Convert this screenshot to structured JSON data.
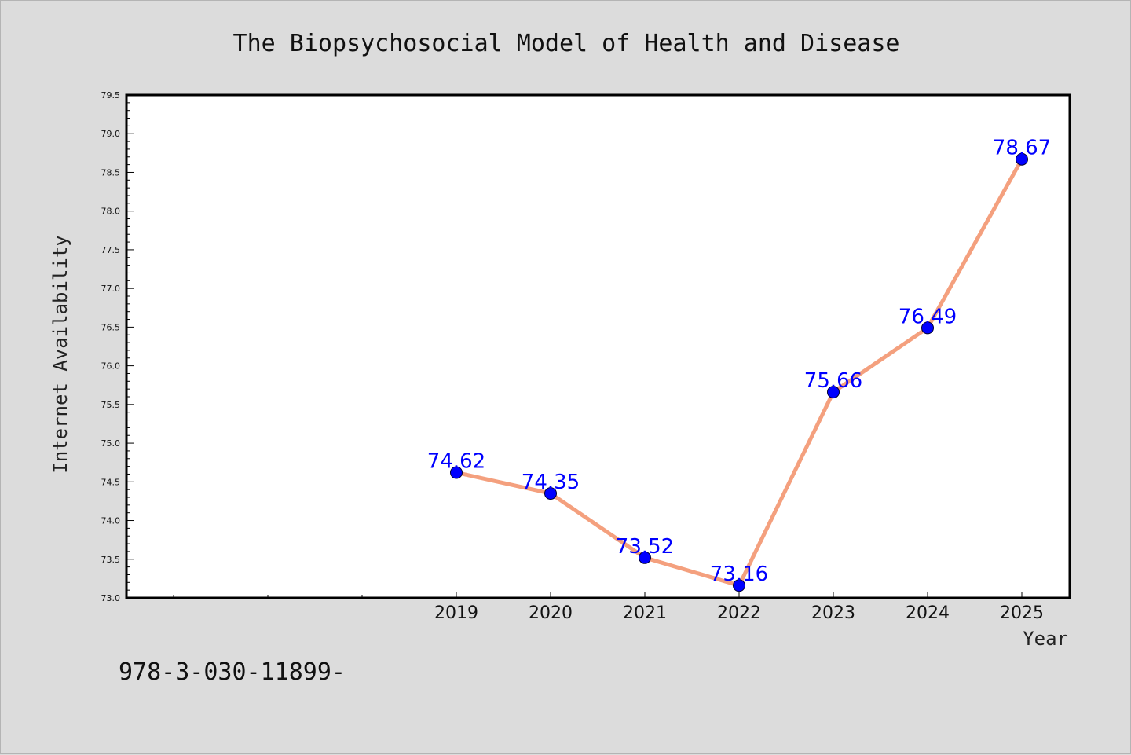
{
  "chart_data": {
    "type": "line",
    "title": "The Biopsychosocial Model of Health and Disease",
    "xlabel": "Year",
    "ylabel": "Internet Availability",
    "x": [
      "2019",
      "2020",
      "2021",
      "2022",
      "2023",
      "2024",
      "2025"
    ],
    "series": [
      {
        "values": [
          74.62,
          74.35,
          73.52,
          73.16,
          75.66,
          76.49,
          78.67
        ],
        "labels": [
          "74.62",
          "74.35",
          "73.52",
          "73.16",
          "75.66",
          "76.49",
          "78.67"
        ]
      }
    ],
    "ylim": [
      73.0,
      79.5
    ],
    "yticks": [
      "73.0",
      "73.5",
      "74.0",
      "74.5",
      "75.0",
      "75.5",
      "76.0",
      "76.5",
      "77.0",
      "77.5",
      "78.0",
      "78.5",
      "79.0",
      "79.5"
    ],
    "grid": false,
    "legend": "none",
    "colors": {
      "line": "#f4a07e",
      "marker": "#0000ff",
      "data_label": "#0000ff",
      "background": "#dcdcdc",
      "plot_background": "#ffffff"
    }
  },
  "footer": {
    "text": "978-3-030-11899-"
  }
}
